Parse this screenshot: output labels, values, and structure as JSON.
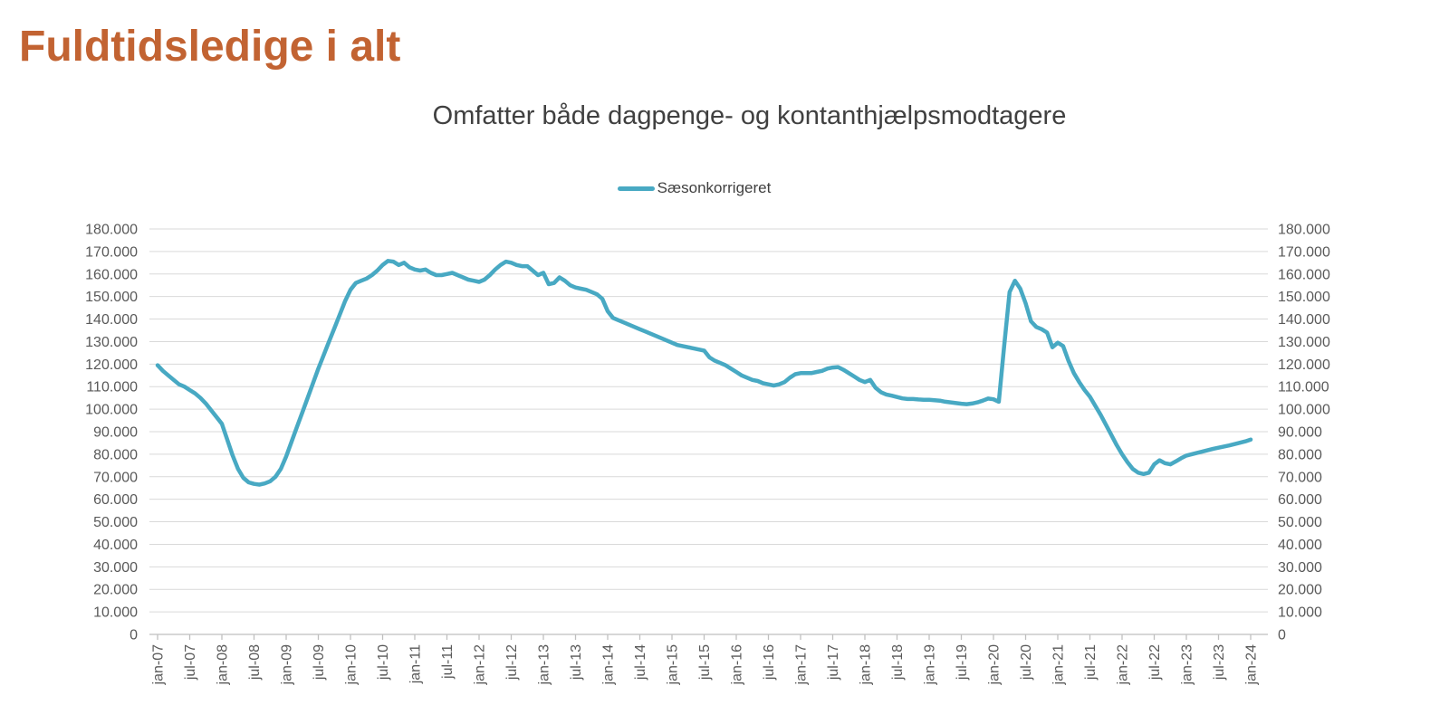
{
  "page": {
    "title": "Fuldtidsledige i alt"
  },
  "colors": {
    "title": "#C26332",
    "subtitle": "#404040",
    "legend_text": "#404040",
    "axis_text": "#595959",
    "gridline": "#D9D9D9",
    "axis_line": "#BFBFBF",
    "series_line": "#48A9C3",
    "background": "#FFFFFF"
  },
  "chart_data": {
    "type": "line",
    "title": "Omfatter både dagpenge- og kontanthjælpsmodtagere",
    "xlabel": "",
    "ylabel": "",
    "ylim": [
      0,
      180000
    ],
    "y_tick_interval": 10000,
    "y_tick_labels": [
      "0",
      "10.000",
      "20.000",
      "30.000",
      "40.000",
      "50.000",
      "60.000",
      "70.000",
      "80.000",
      "90.000",
      "100.000",
      "110.000",
      "120.000",
      "130.000",
      "140.000",
      "150.000",
      "160.000",
      "170.000",
      "180.000"
    ],
    "y_axis_sides": "both",
    "grid": "horizontal",
    "legend_position": "top-center",
    "x_start": "jan-07",
    "x_end": "jan-24",
    "x_interval": "month",
    "x_tick_every_months": 6,
    "x_tick_labels": [
      "jan-07",
      "jul-07",
      "jan-08",
      "jul-08",
      "jan-09",
      "jul-09",
      "jan-10",
      "jul-10",
      "jan-11",
      "jul-11",
      "jan-12",
      "jul-12",
      "jan-13",
      "jul-13",
      "jan-14",
      "jul-14",
      "jan-15",
      "jul-15",
      "jan-16",
      "jul-16",
      "jan-17",
      "jul-17",
      "jan-18",
      "jul-18",
      "jan-19",
      "jul-19",
      "jan-20",
      "jul-20",
      "jan-21",
      "jul-21",
      "jan-22",
      "jul-22",
      "jan-23",
      "jul-23",
      "jan-24"
    ],
    "series": [
      {
        "name": "Sæsonkorrigeret",
        "color": "#48A9C3",
        "values": [
          119500,
          117000,
          115000,
          113000,
          111000,
          110000,
          108500,
          107000,
          105000,
          102500,
          99500,
          96500,
          93500,
          86500,
          79500,
          73500,
          69500,
          67500,
          66800,
          66500,
          67000,
          68000,
          70000,
          73500,
          79000,
          85500,
          92000,
          98500,
          105000,
          111500,
          118000,
          124000,
          130000,
          136000,
          142000,
          148000,
          153000,
          156000,
          157000,
          158000,
          159500,
          161500,
          164000,
          165800,
          165500,
          164000,
          165000,
          163000,
          162000,
          161500,
          162000,
          160500,
          159500,
          159500,
          160000,
          160500,
          159500,
          158500,
          157500,
          157000,
          156500,
          157500,
          159500,
          162000,
          164000,
          165500,
          165000,
          164000,
          163500,
          163500,
          161500,
          159500,
          160500,
          155500,
          156000,
          158500,
          157000,
          155000,
          154000,
          153500,
          153000,
          152000,
          151000,
          149000,
          143500,
          140500,
          139500,
          138500,
          137500,
          136500,
          135500,
          134500,
          133500,
          132500,
          131500,
          130500,
          129500,
          128500,
          128000,
          127500,
          127000,
          126500,
          126000,
          123000,
          121500,
          120500,
          119500,
          118000,
          116500,
          115000,
          114000,
          113000,
          112500,
          111500,
          111000,
          110500,
          111000,
          112000,
          114000,
          115500,
          116000,
          116000,
          116000,
          116500,
          117000,
          118000,
          118500,
          118700,
          117500,
          116000,
          114500,
          113000,
          112000,
          113000,
          109500,
          107500,
          106500,
          106000,
          105400,
          104800,
          104500,
          104500,
          104300,
          104200,
          104200,
          104000,
          103800,
          103300,
          103000,
          102700,
          102400,
          102200,
          102500,
          103000,
          103800,
          104700,
          104400,
          103300,
          128000,
          152000,
          157000,
          153500,
          147000,
          139000,
          136500,
          135500,
          134000,
          127500,
          129500,
          128000,
          121500,
          116000,
          112000,
          108500,
          105500,
          101500,
          97500,
          93000,
          88500,
          84000,
          80000,
          76500,
          73500,
          71800,
          71200,
          71800,
          75500,
          77300,
          76000,
          75500,
          76800,
          78200,
          79400,
          80000,
          80600,
          81200,
          81800,
          82400,
          82900,
          83400,
          83900,
          84500,
          85100,
          85700,
          86500
        ]
      }
    ]
  }
}
